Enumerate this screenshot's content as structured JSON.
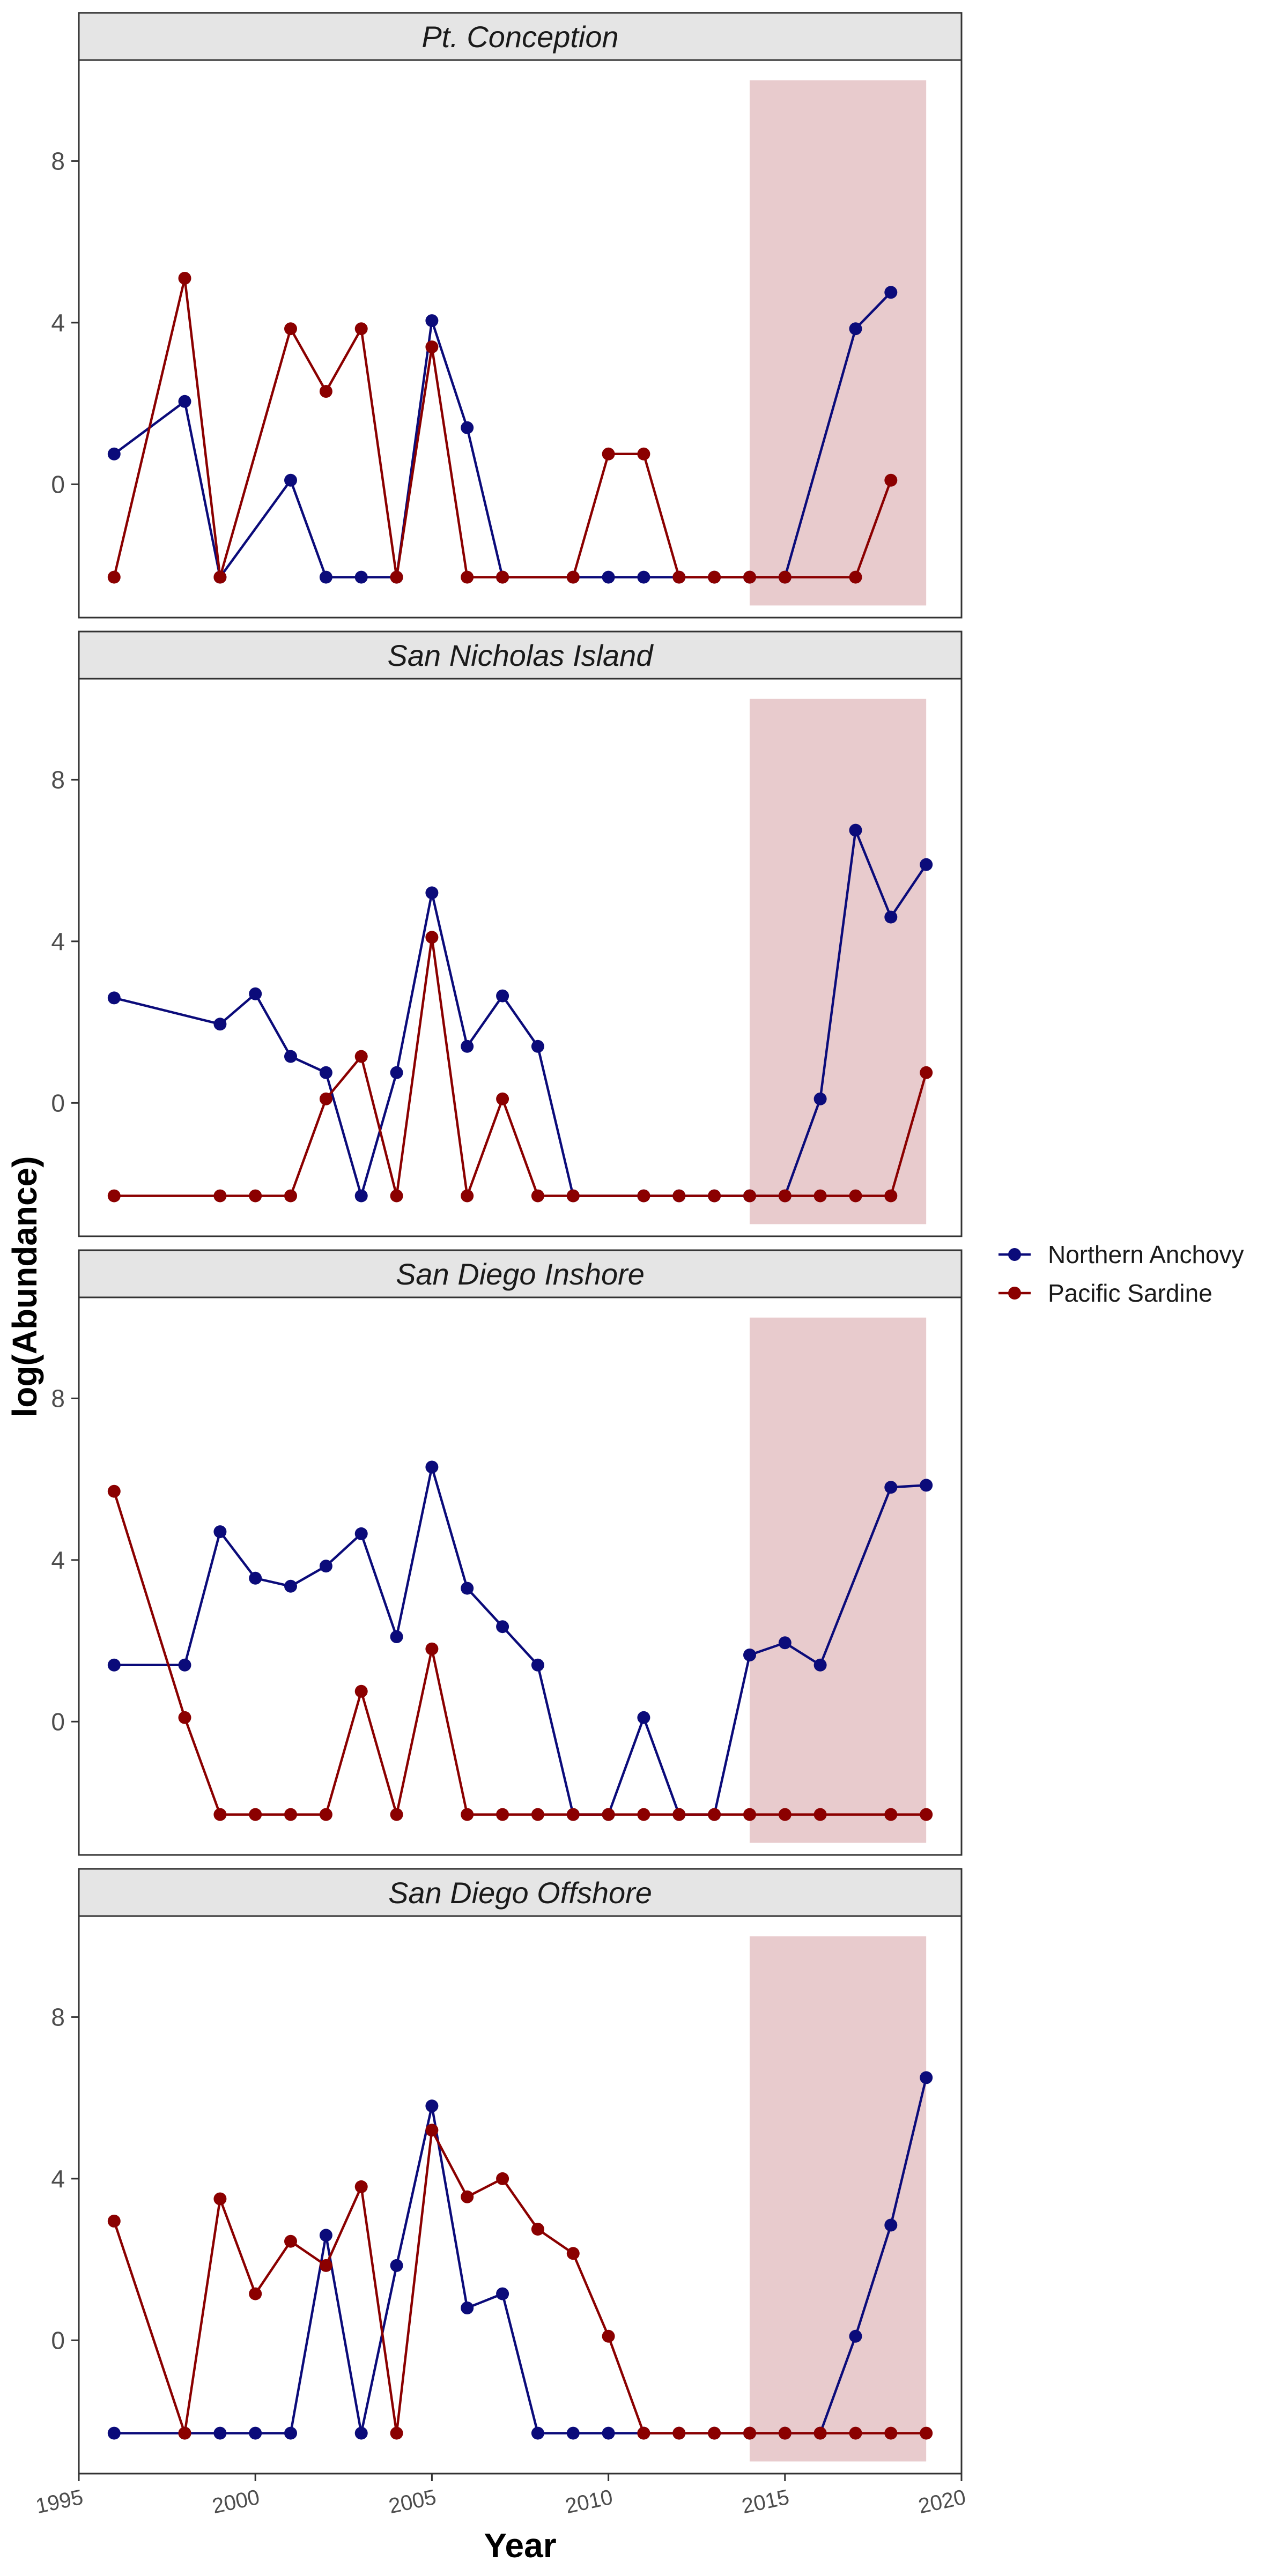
{
  "chart_data": {
    "type": "line",
    "xlabel": "Year",
    "ylabel": "log(Abundance)",
    "xlim": [
      1995,
      2020
    ],
    "xticks": [
      1995,
      2000,
      2005,
      2010,
      2015,
      2020
    ],
    "ylim": [
      -3.3,
      10.5
    ],
    "yticks": [
      0,
      4,
      8
    ],
    "grid": false,
    "legend_position": "right",
    "legend": [
      {
        "name": "Northern Anchovy",
        "color": "#0b0b7a"
      },
      {
        "name": "Pacific Sardine",
        "color": "#8b0000"
      }
    ],
    "highlight": {
      "x_start": 2014,
      "x_end": 2019,
      "y_start": -3,
      "y_end": 10,
      "color": "#e8cbcd"
    },
    "panels": [
      {
        "title": "Pt. Conception",
        "series": [
          {
            "name": "Northern Anchovy",
            "x": [
              1996,
              1998,
              1999,
              2001,
              2002,
              2003,
              2004,
              2005,
              2006,
              2007,
              2009,
              2010,
              2011,
              2012,
              2013,
              2014,
              2015,
              2017,
              2018
            ],
            "y": [
              0.75,
              2.05,
              -2.3,
              0.1,
              -2.3,
              -2.3,
              -2.3,
              4.05,
              1.4,
              -2.3,
              -2.3,
              -2.3,
              -2.3,
              -2.3,
              -2.3,
              -2.3,
              -2.3,
              3.85,
              4.75
            ]
          },
          {
            "name": "Pacific Sardine",
            "x": [
              1996,
              1998,
              1999,
              2001,
              2002,
              2003,
              2004,
              2005,
              2006,
              2007,
              2009,
              2010,
              2011,
              2012,
              2013,
              2014,
              2015,
              2017,
              2018
            ],
            "y": [
              -2.3,
              5.1,
              -2.3,
              3.85,
              2.3,
              3.85,
              -2.3,
              3.4,
              -2.3,
              -2.3,
              -2.3,
              0.75,
              0.75,
              -2.3,
              -2.3,
              -2.3,
              -2.3,
              -2.3,
              0.1
            ]
          }
        ]
      },
      {
        "title": "San Nicholas Island",
        "series": [
          {
            "name": "Northern Anchovy",
            "x": [
              1996,
              1999,
              2000,
              2001,
              2002,
              2003,
              2004,
              2005,
              2006,
              2007,
              2008,
              2009,
              2011,
              2012,
              2013,
              2014,
              2015,
              2016,
              2017,
              2018,
              2019
            ],
            "y": [
              2.6,
              1.95,
              2.7,
              1.15,
              0.75,
              -2.3,
              0.75,
              5.2,
              1.4,
              2.65,
              1.4,
              -2.3,
              -2.3,
              -2.3,
              -2.3,
              -2.3,
              -2.3,
              0.1,
              6.75,
              4.6,
              5.9
            ]
          },
          {
            "name": "Pacific Sardine",
            "x": [
              1996,
              1999,
              2000,
              2001,
              2002,
              2003,
              2004,
              2005,
              2006,
              2007,
              2008,
              2009,
              2011,
              2012,
              2013,
              2014,
              2015,
              2016,
              2017,
              2018,
              2019
            ],
            "y": [
              -2.3,
              -2.3,
              -2.3,
              -2.3,
              0.1,
              1.15,
              -2.3,
              4.1,
              -2.3,
              0.1,
              -2.3,
              -2.3,
              -2.3,
              -2.3,
              -2.3,
              -2.3,
              -2.3,
              -2.3,
              -2.3,
              -2.3,
              0.75
            ]
          }
        ]
      },
      {
        "title": "San Diego Inshore",
        "series": [
          {
            "name": "Northern Anchovy",
            "x": [
              1996,
              1998,
              1999,
              2000,
              2001,
              2002,
              2003,
              2004,
              2005,
              2006,
              2007,
              2008,
              2009,
              2010,
              2011,
              2012,
              2013,
              2014,
              2015,
              2016,
              2018,
              2019
            ],
            "y": [
              1.4,
              1.4,
              4.7,
              3.55,
              3.35,
              3.85,
              4.65,
              2.1,
              6.3,
              3.3,
              2.35,
              1.4,
              -2.3,
              -2.3,
              0.1,
              -2.3,
              -2.3,
              1.65,
              1.95,
              1.4,
              5.8,
              5.85
            ]
          },
          {
            "name": "Pacific Sardine",
            "x": [
              1996,
              1998,
              1999,
              2000,
              2001,
              2002,
              2003,
              2004,
              2005,
              2006,
              2007,
              2008,
              2009,
              2010,
              2011,
              2012,
              2013,
              2014,
              2015,
              2016,
              2018,
              2019
            ],
            "y": [
              5.7,
              0.1,
              -2.3,
              -2.3,
              -2.3,
              -2.3,
              0.75,
              -2.3,
              1.8,
              -2.3,
              -2.3,
              -2.3,
              -2.3,
              -2.3,
              -2.3,
              -2.3,
              -2.3,
              -2.3,
              -2.3,
              -2.3,
              -2.3,
              -2.3
            ]
          }
        ]
      },
      {
        "title": "San Diego Offshore",
        "series": [
          {
            "name": "Northern Anchovy",
            "x": [
              1996,
              1998,
              1999,
              2000,
              2001,
              2002,
              2003,
              2004,
              2005,
              2006,
              2007,
              2008,
              2009,
              2010,
              2011,
              2012,
              2013,
              2014,
              2015,
              2016,
              2017,
              2018,
              2019
            ],
            "y": [
              -2.3,
              -2.3,
              -2.3,
              -2.3,
              -2.3,
              2.6,
              -2.3,
              1.85,
              5.8,
              0.8,
              1.15,
              -2.3,
              -2.3,
              -2.3,
              -2.3,
              -2.3,
              -2.3,
              -2.3,
              -2.3,
              -2.3,
              0.1,
              2.85,
              6.5
            ]
          },
          {
            "name": "Pacific Sardine",
            "x": [
              1996,
              1998,
              1999,
              2000,
              2001,
              2002,
              2003,
              2004,
              2005,
              2006,
              2007,
              2008,
              2009,
              2010,
              2011,
              2012,
              2013,
              2014,
              2015,
              2016,
              2017,
              2018,
              2019
            ],
            "y": [
              2.95,
              -2.3,
              3.5,
              1.15,
              2.45,
              1.85,
              3.8,
              -2.3,
              5.2,
              3.55,
              4.0,
              2.75,
              2.15,
              0.1,
              -2.3,
              -2.3,
              -2.3,
              -2.3,
              -2.3,
              -2.3,
              -2.3,
              -2.3,
              -2.3
            ]
          }
        ]
      }
    ]
  }
}
